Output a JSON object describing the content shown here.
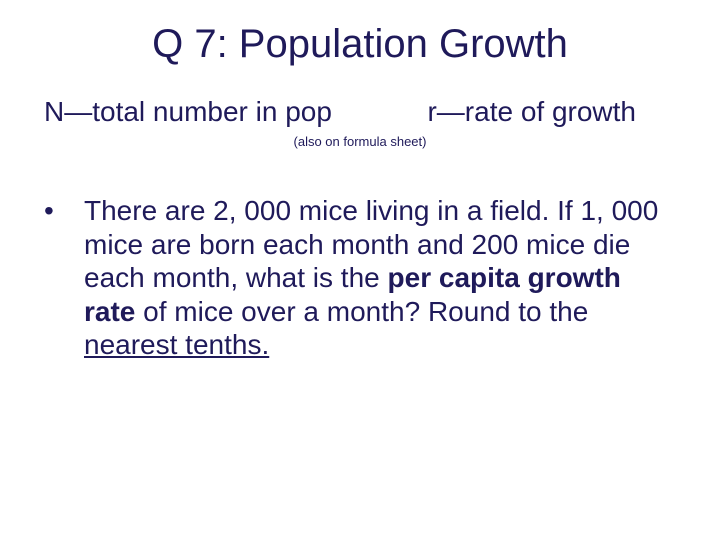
{
  "colors": {
    "text": "#1f1a5a",
    "background": "#ffffff"
  },
  "fonts": {
    "family": "Arial",
    "title_size_pt": 40,
    "body_size_pt": 28,
    "note_size_pt": 13
  },
  "title": "Q 7: Population Growth",
  "definitions": {
    "left": "N—total number in pop",
    "right": "r—rate of growth"
  },
  "note": "(also on formula sheet)",
  "bullet_glyph": "•",
  "body": {
    "part1": "There are 2, 000 mice living in a field. If 1, 000 mice are born each month and 200 mice die each month, what is the ",
    "bold1": "per capita growth rate",
    "part2": " of mice over a month?  Round to the ",
    "underline1": "nearest tenths.",
    "part3": ""
  }
}
